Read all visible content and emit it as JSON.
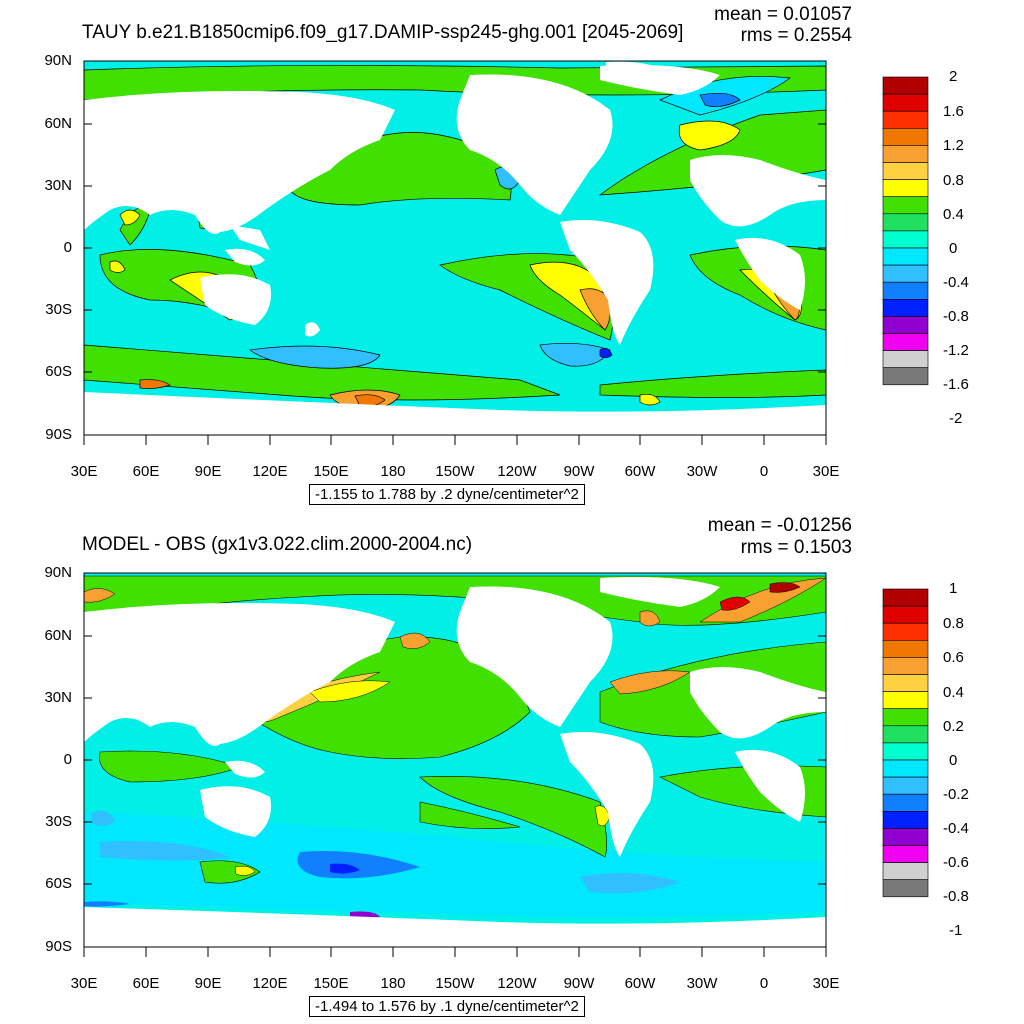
{
  "panels": [
    {
      "title": "TAUY b.e21.B1850cmip6.f09_g17.DAMIP-ssp245-ghg.001 [2045-2069]",
      "mean": "mean = 0.01057",
      "rms": "rms = 0.2554",
      "range": "-1.155 to 1.788 by .2 dyne/centimeter^2",
      "lat_labels": [
        "90N",
        "60N",
        "30N",
        "0",
        "30S",
        "60S",
        "90S"
      ],
      "lon_labels": [
        "30E",
        "60E",
        "90E",
        "120E",
        "150E",
        "180",
        "150W",
        "120W",
        "90W",
        "60W",
        "30W",
        "0",
        "30E"
      ],
      "colorbar_labels": [
        "2",
        "1.6",
        "1.2",
        "0.8",
        "0.4",
        "0",
        "-0.4",
        "-0.8",
        "-1.2",
        "-1.6",
        "-2"
      ],
      "colorbar_colors": [
        "#b00000",
        "#e00000",
        "#ff3000",
        "#f07800",
        "#f8a030",
        "#ffd040",
        "#ffff00",
        "#40e000",
        "#20e060",
        "#00ffd0",
        "#00e8ff",
        "#30c0ff",
        "#1080ff",
        "#0020ff",
        "#9000d0",
        "#f000f0",
        "#d0d0d0",
        "#787878"
      ]
    },
    {
      "title": "MODEL - OBS (gx1v3.022.clim.2000-2004.nc)",
      "mean": "mean = -0.01256",
      "rms": "rms = 0.1503",
      "range": "-1.494 to 1.576 by .1 dyne/centimeter^2",
      "lat_labels": [
        "90N",
        "60N",
        "30N",
        "0",
        "30S",
        "60S",
        "90S"
      ],
      "lon_labels": [
        "30E",
        "60E",
        "90E",
        "120E",
        "150E",
        "180",
        "150W",
        "120W",
        "90W",
        "60W",
        "30W",
        "0",
        "30E"
      ],
      "colorbar_labels": [
        "1",
        "0.8",
        "0.6",
        "0.4",
        "0.2",
        "0",
        "-0.2",
        "-0.4",
        "-0.6",
        "-0.8",
        "-1"
      ],
      "colorbar_colors": [
        "#b00000",
        "#e00000",
        "#ff3000",
        "#f07800",
        "#f8a030",
        "#ffd040",
        "#ffff00",
        "#40e000",
        "#20e060",
        "#00ffd0",
        "#00e8ff",
        "#30c0ff",
        "#1080ff",
        "#0020ff",
        "#9000d0",
        "#f000f0",
        "#d0d0d0",
        "#787878"
      ]
    }
  ],
  "colors": {
    "ocean_base": "#00f0e8",
    "land": "#ffffff",
    "green": "#40e000",
    "yellow": "#ffff00"
  }
}
